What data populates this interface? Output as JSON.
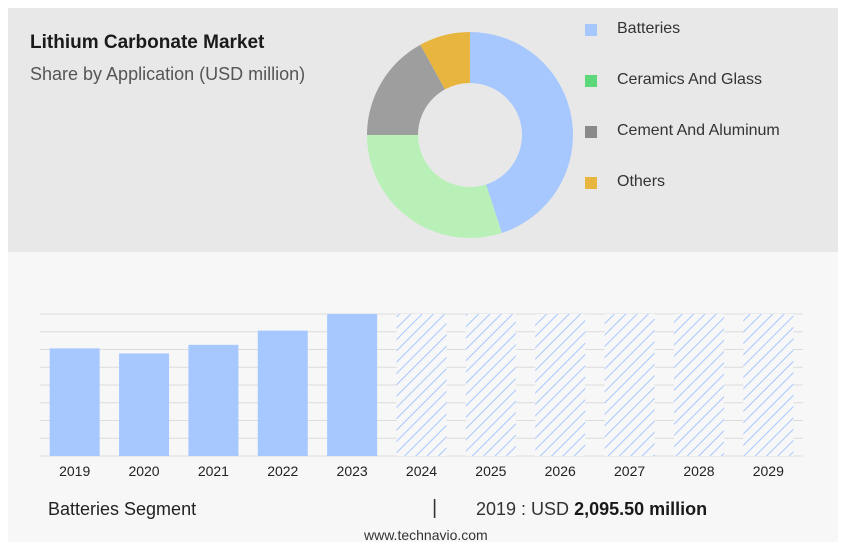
{
  "header": {
    "title": "Lithium Carbonate Market",
    "subtitle": "Share by Application (USD million)"
  },
  "donut": {
    "segments": [
      {
        "label": "Batteries",
        "share": 0.45,
        "color": "#a7c8ff"
      },
      {
        "label": "Ceramics And Glass",
        "share": 0.3,
        "color": "#b9f0b8"
      },
      {
        "label": "Cement And Aluminum",
        "share": 0.17,
        "color": "#9e9e9e"
      },
      {
        "label": "Others",
        "share": 0.08,
        "color": "#e8b63e"
      }
    ]
  },
  "legend": {
    "items": [
      {
        "label": "Batteries",
        "color": "#a7c8ff"
      },
      {
        "label": "Ceramics And Glass",
        "color": "#5cd87a"
      },
      {
        "label": "Cement And Aluminum",
        "color": "#8a8a8a"
      },
      {
        "label": "Others",
        "color": "#e8b63e"
      }
    ]
  },
  "chart_data": {
    "type": "bar",
    "categories": [
      "2019",
      "2020",
      "2021",
      "2022",
      "2023",
      "2024",
      "2025",
      "2026",
      "2027",
      "2028",
      "2029"
    ],
    "values": [
      2095.5,
      1996,
      2164,
      2440,
      2764,
      null,
      null,
      null,
      null,
      null,
      null
    ],
    "forecast_from": "2024",
    "ylim": [
      0,
      2764
    ],
    "bar_color": "#a7c8ff",
    "grid": true
  },
  "footer": {
    "segment_label": "Batteries Segment",
    "separator": "|",
    "year_prefix": "2019 : USD ",
    "value_bold": "2,095.50 million",
    "source": "www.technavio.com"
  }
}
